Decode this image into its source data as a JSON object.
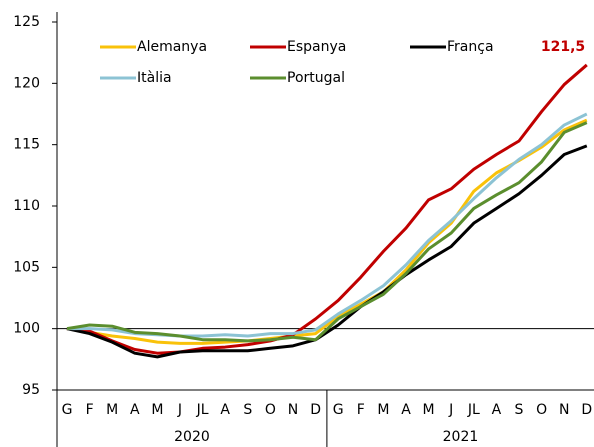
{
  "chart_data": {
    "type": "line",
    "categories": [
      "G",
      "F",
      "M",
      "A",
      "M",
      "J",
      "JL",
      "A",
      "S",
      "O",
      "N",
      "D",
      "G",
      "F",
      "M",
      "A",
      "M",
      "J",
      "JL",
      "A",
      "S",
      "O",
      "N",
      "D"
    ],
    "years": [
      "2020",
      "2021"
    ],
    "ylim": [
      95,
      125
    ],
    "yticks": [
      95,
      100,
      105,
      110,
      115,
      120,
      125
    ],
    "hline": 100,
    "annotation": {
      "text": "121,5",
      "color": "#c00000"
    },
    "series": [
      {
        "name": "Alemanya",
        "color": "#f9c20a",
        "values": [
          100,
          99.7,
          99.4,
          99.2,
          98.9,
          98.8,
          98.8,
          98.9,
          99.0,
          99.2,
          99.4,
          99.6,
          101.0,
          102.0,
          103.0,
          104.8,
          107.0,
          108.6,
          111.2,
          112.7,
          113.7,
          114.8,
          116.2,
          117.0
        ]
      },
      {
        "name": "Espanya",
        "color": "#c00000",
        "values": [
          100,
          99.8,
          99.0,
          98.3,
          98.0,
          98.1,
          98.4,
          98.5,
          98.7,
          99.0,
          99.5,
          100.8,
          102.3,
          104.2,
          106.3,
          108.2,
          110.5,
          111.4,
          113.0,
          114.2,
          115.3,
          117.7,
          119.9,
          121.5
        ]
      },
      {
        "name": "França",
        "color": "#000000",
        "values": [
          100,
          99.6,
          98.9,
          98.0,
          97.7,
          98.1,
          98.2,
          98.2,
          98.2,
          98.4,
          98.6,
          99.1,
          100.3,
          101.8,
          103.0,
          104.4,
          105.6,
          106.7,
          108.6,
          109.8,
          111.0,
          112.5,
          114.2,
          114.9
        ]
      },
      {
        "name": "Itàlia",
        "color": "#8cc3d4",
        "values": [
          100,
          100.0,
          99.9,
          99.6,
          99.5,
          99.4,
          99.4,
          99.5,
          99.4,
          99.6,
          99.6,
          99.9,
          101.2,
          102.3,
          103.5,
          105.2,
          107.2,
          108.8,
          110.6,
          112.3,
          113.8,
          115.0,
          116.6,
          117.5
        ]
      },
      {
        "name": "Portugal",
        "color": "#5b8e2e",
        "values": [
          100,
          100.3,
          100.2,
          99.7,
          99.6,
          99.4,
          99.1,
          99.1,
          99.0,
          99.1,
          99.3,
          99.1,
          100.8,
          101.8,
          102.8,
          104.5,
          106.5,
          107.8,
          109.8,
          110.9,
          111.9,
          113.6,
          116.0,
          116.8
        ]
      }
    ]
  }
}
